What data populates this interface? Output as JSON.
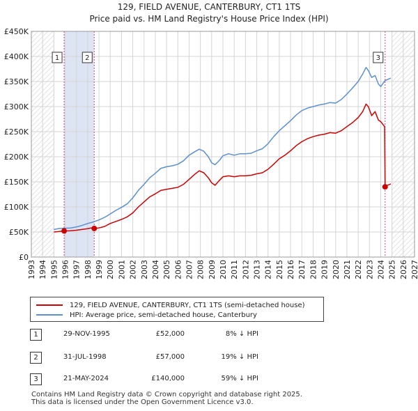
{
  "chart_data": {
    "type": "line",
    "title": "129, FIELD AVENUE, CANTERBURY, CT1 1TS",
    "subtitle": "Price paid vs. HM Land Registry's House Price Index (HPI)",
    "xlim": [
      1993,
      2027
    ],
    "ylim": [
      0,
      450000
    ],
    "x_ticks": [
      "1993",
      "1994",
      "1995",
      "1996",
      "1997",
      "1998",
      "1999",
      "2000",
      "2001",
      "2002",
      "2003",
      "2004",
      "2005",
      "2006",
      "2007",
      "2008",
      "2009",
      "2010",
      "2011",
      "2012",
      "2013",
      "2014",
      "2015",
      "2016",
      "2017",
      "2018",
      "2019",
      "2020",
      "2021",
      "2022",
      "2023",
      "2024",
      "2025",
      "2026",
      "2027"
    ],
    "y_ticks": [
      {
        "value": 0,
        "label": "£0"
      },
      {
        "value": 50000,
        "label": "£50K"
      },
      {
        "value": 100000,
        "label": "£100K"
      },
      {
        "value": 150000,
        "label": "£150K"
      },
      {
        "value": 200000,
        "label": "£200K"
      },
      {
        "value": 250000,
        "label": "£250K"
      },
      {
        "value": 300000,
        "label": "£300K"
      },
      {
        "value": 350000,
        "label": "£350K"
      },
      {
        "value": 400000,
        "label": "£400K"
      },
      {
        "value": 450000,
        "label": "£450K"
      }
    ],
    "data_start": 1995.0,
    "future_from": 2025.0,
    "series": [
      {
        "name": "129, FIELD AVENUE, CANTERBURY, CT1 1TS (semi-detached house)",
        "color": "#cc0000",
        "points": [
          [
            1995.0,
            50000
          ],
          [
            1995.5,
            51000
          ],
          [
            1995.91,
            52000
          ],
          [
            1996.5,
            52500
          ],
          [
            1997.0,
            53500
          ],
          [
            1997.5,
            55000
          ],
          [
            1998.0,
            56500
          ],
          [
            1998.3,
            58000
          ],
          [
            1998.58,
            57000
          ],
          [
            1999.0,
            58000
          ],
          [
            1999.5,
            61000
          ],
          [
            2000.0,
            67000
          ],
          [
            2000.5,
            71000
          ],
          [
            2001.0,
            75000
          ],
          [
            2001.5,
            80000
          ],
          [
            2002.0,
            88000
          ],
          [
            2002.5,
            100000
          ],
          [
            2003.0,
            110000
          ],
          [
            2003.5,
            120000
          ],
          [
            2004.0,
            126000
          ],
          [
            2004.5,
            133000
          ],
          [
            2005.0,
            135000
          ],
          [
            2005.5,
            137000
          ],
          [
            2006.0,
            139000
          ],
          [
            2006.5,
            145000
          ],
          [
            2007.0,
            155000
          ],
          [
            2007.5,
            165000
          ],
          [
            2007.9,
            172000
          ],
          [
            2008.3,
            168000
          ],
          [
            2008.7,
            158000
          ],
          [
            2009.0,
            148000
          ],
          [
            2009.3,
            143000
          ],
          [
            2009.7,
            153000
          ],
          [
            2010.0,
            160000
          ],
          [
            2010.5,
            162000
          ],
          [
            2011.0,
            160000
          ],
          [
            2011.5,
            162000
          ],
          [
            2012.0,
            162000
          ],
          [
            2012.5,
            163000
          ],
          [
            2013.0,
            166000
          ],
          [
            2013.5,
            168000
          ],
          [
            2014.0,
            175000
          ],
          [
            2014.5,
            185000
          ],
          [
            2015.0,
            196000
          ],
          [
            2015.5,
            203000
          ],
          [
            2016.0,
            212000
          ],
          [
            2016.5,
            222000
          ],
          [
            2017.0,
            230000
          ],
          [
            2017.5,
            236000
          ],
          [
            2018.0,
            240000
          ],
          [
            2018.5,
            243000
          ],
          [
            2019.0,
            245000
          ],
          [
            2019.5,
            248000
          ],
          [
            2020.0,
            247000
          ],
          [
            2020.5,
            252000
          ],
          [
            2021.0,
            260000
          ],
          [
            2021.5,
            268000
          ],
          [
            2022.0,
            278000
          ],
          [
            2022.4,
            290000
          ],
          [
            2022.7,
            305000
          ],
          [
            2022.9,
            300000
          ],
          [
            2023.2,
            282000
          ],
          [
            2023.5,
            290000
          ],
          [
            2023.8,
            273000
          ],
          [
            2024.0,
            270000
          ],
          [
            2024.35,
            260000
          ],
          [
            2024.39,
            140000
          ],
          [
            2024.6,
            143000
          ],
          [
            2024.9,
            146000
          ]
        ]
      },
      {
        "name": "HPI: Average price, semi-detached house, Canterbury",
        "color": "#5b8fd0",
        "points": [
          [
            1995.0,
            55000
          ],
          [
            1995.5,
            57000
          ],
          [
            1996.0,
            57500
          ],
          [
            1996.5,
            58000
          ],
          [
            1997.0,
            60000
          ],
          [
            1997.5,
            63000
          ],
          [
            1998.0,
            67000
          ],
          [
            1998.5,
            70000
          ],
          [
            1999.0,
            74000
          ],
          [
            1999.5,
            79000
          ],
          [
            2000.0,
            86000
          ],
          [
            2000.5,
            93000
          ],
          [
            2001.0,
            99000
          ],
          [
            2001.5,
            106000
          ],
          [
            2002.0,
            118000
          ],
          [
            2002.5,
            133000
          ],
          [
            2003.0,
            145000
          ],
          [
            2003.5,
            158000
          ],
          [
            2004.0,
            167000
          ],
          [
            2004.5,
            177000
          ],
          [
            2005.0,
            180000
          ],
          [
            2005.5,
            182000
          ],
          [
            2006.0,
            185000
          ],
          [
            2006.5,
            192000
          ],
          [
            2007.0,
            203000
          ],
          [
            2007.5,
            210000
          ],
          [
            2007.9,
            215000
          ],
          [
            2008.3,
            211000
          ],
          [
            2008.7,
            200000
          ],
          [
            2009.0,
            188000
          ],
          [
            2009.3,
            184000
          ],
          [
            2009.7,
            193000
          ],
          [
            2010.0,
            202000
          ],
          [
            2010.5,
            206000
          ],
          [
            2011.0,
            203000
          ],
          [
            2011.5,
            206000
          ],
          [
            2012.0,
            206000
          ],
          [
            2012.5,
            207000
          ],
          [
            2013.0,
            212000
          ],
          [
            2013.5,
            216000
          ],
          [
            2014.0,
            226000
          ],
          [
            2014.5,
            240000
          ],
          [
            2015.0,
            252000
          ],
          [
            2015.5,
            262000
          ],
          [
            2016.0,
            272000
          ],
          [
            2016.5,
            283000
          ],
          [
            2017.0,
            292000
          ],
          [
            2017.5,
            297000
          ],
          [
            2018.0,
            300000
          ],
          [
            2018.5,
            303000
          ],
          [
            2019.0,
            305000
          ],
          [
            2019.5,
            308000
          ],
          [
            2020.0,
            307000
          ],
          [
            2020.5,
            314000
          ],
          [
            2021.0,
            325000
          ],
          [
            2021.5,
            337000
          ],
          [
            2022.0,
            350000
          ],
          [
            2022.4,
            365000
          ],
          [
            2022.7,
            378000
          ],
          [
            2022.9,
            372000
          ],
          [
            2023.2,
            358000
          ],
          [
            2023.5,
            362000
          ],
          [
            2023.8,
            345000
          ],
          [
            2024.0,
            340000
          ],
          [
            2024.4,
            352000
          ],
          [
            2024.7,
            355000
          ],
          [
            2024.9,
            357000
          ]
        ]
      }
    ],
    "sales": [
      {
        "label": "1",
        "x": 1995.91,
        "y": 52000
      },
      {
        "label": "2",
        "x": 1998.58,
        "y": 57000
      },
      {
        "label": "3",
        "x": 2024.39,
        "y": 140000
      }
    ],
    "shaded_ranges": [
      [
        1995.91,
        1998.58
      ]
    ]
  },
  "legend": {
    "price_paid": "129, FIELD AVENUE, CANTERBURY, CT1 1TS (semi-detached house)",
    "hpi": "HPI: Average price, semi-detached house, Canterbury"
  },
  "transactions": [
    {
      "num": "1",
      "date": "29-NOV-1995",
      "price": "£52,000",
      "hpi": "8% ↓ HPI"
    },
    {
      "num": "2",
      "date": "31-JUL-1998",
      "price": "£57,000",
      "hpi": "19% ↓ HPI"
    },
    {
      "num": "3",
      "date": "21-MAY-2024",
      "price": "£140,000",
      "hpi": "59% ↓ HPI"
    }
  ],
  "footer": {
    "line1": "Contains HM Land Registry data © Crown copyright and database right 2025.",
    "line2": "This data is licensed under the Open Government Licence v3.0."
  },
  "colors": {
    "red": "#cc0000",
    "blue": "#5b8fd0",
    "shade": "#dde5f5",
    "grid": "#d4d4d4",
    "vline": "#e04070"
  }
}
